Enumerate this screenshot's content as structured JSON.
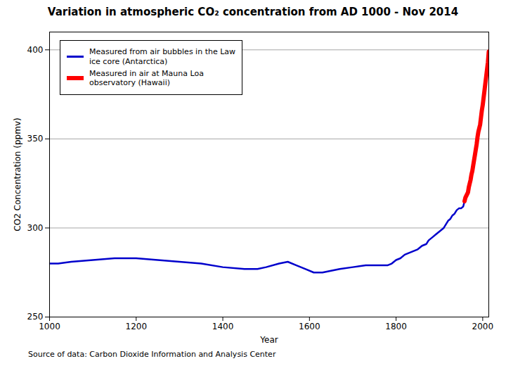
{
  "chart_data": {
    "type": "line",
    "title": "Variation in atmospheric CO₂ concentration from AD 1000 - Nov 2014",
    "xlabel": "Year",
    "ylabel": "CO2 Concentration (ppmv)",
    "caption": "Source of data: Carbon Dioxide Information and Analysis Center",
    "xlim": [
      1000,
      2014
    ],
    "ylim": [
      250,
      410
    ],
    "xticks": [
      1000,
      1200,
      1400,
      1600,
      1800,
      2000
    ],
    "yticks": [
      250,
      300,
      350,
      400
    ],
    "grid": true,
    "legend": "upper left",
    "series": [
      {
        "name": "Measured from air bubbles in the Law\nice core (Antarctica)",
        "color": "#0000CC",
        "x": [
          1000,
          1020,
          1050,
          1100,
          1150,
          1200,
          1250,
          1300,
          1350,
          1400,
          1450,
          1480,
          1500,
          1530,
          1550,
          1570,
          1590,
          1610,
          1630,
          1650,
          1670,
          1700,
          1730,
          1750,
          1770,
          1780,
          1790,
          1800,
          1810,
          1820,
          1830,
          1840,
          1850,
          1860,
          1870,
          1875,
          1880,
          1885,
          1890,
          1895,
          1900,
          1905,
          1910,
          1915,
          1920,
          1925,
          1930,
          1935,
          1940,
          1945,
          1950,
          1955,
          1958
        ],
        "values": [
          280,
          280,
          281,
          282,
          283,
          283,
          282,
          281,
          280,
          278,
          277,
          277,
          278,
          280,
          281,
          279,
          277,
          275,
          275,
          276,
          277,
          278,
          279,
          279,
          279,
          279,
          280,
          282,
          283,
          285,
          286,
          287,
          288,
          290,
          291,
          293,
          294,
          295,
          296,
          297,
          298,
          299,
          300,
          302,
          304,
          305,
          307,
          308,
          310,
          311,
          311,
          312,
          315
        ]
      },
      {
        "name": "Measured in air at Mauna Loa\nobservatory (Hawaii)",
        "color": "#FF0000",
        "x": [
          1958,
          1960,
          1962,
          1964,
          1966,
          1968,
          1970,
          1972,
          1974,
          1976,
          1978,
          1980,
          1982,
          1984,
          1986,
          1988,
          1990,
          1992,
          1994,
          1996,
          1998,
          2000,
          2002,
          2004,
          2006,
          2008,
          2010,
          2011,
          2012,
          2013,
          2014
        ],
        "values": [
          315,
          317,
          318,
          319,
          320,
          323,
          325,
          327,
          330,
          332,
          335,
          338,
          341,
          344,
          347,
          351,
          354,
          356,
          358,
          362,
          366,
          369,
          373,
          377,
          381,
          385,
          389,
          391,
          393,
          396,
          399
        ]
      }
    ]
  }
}
